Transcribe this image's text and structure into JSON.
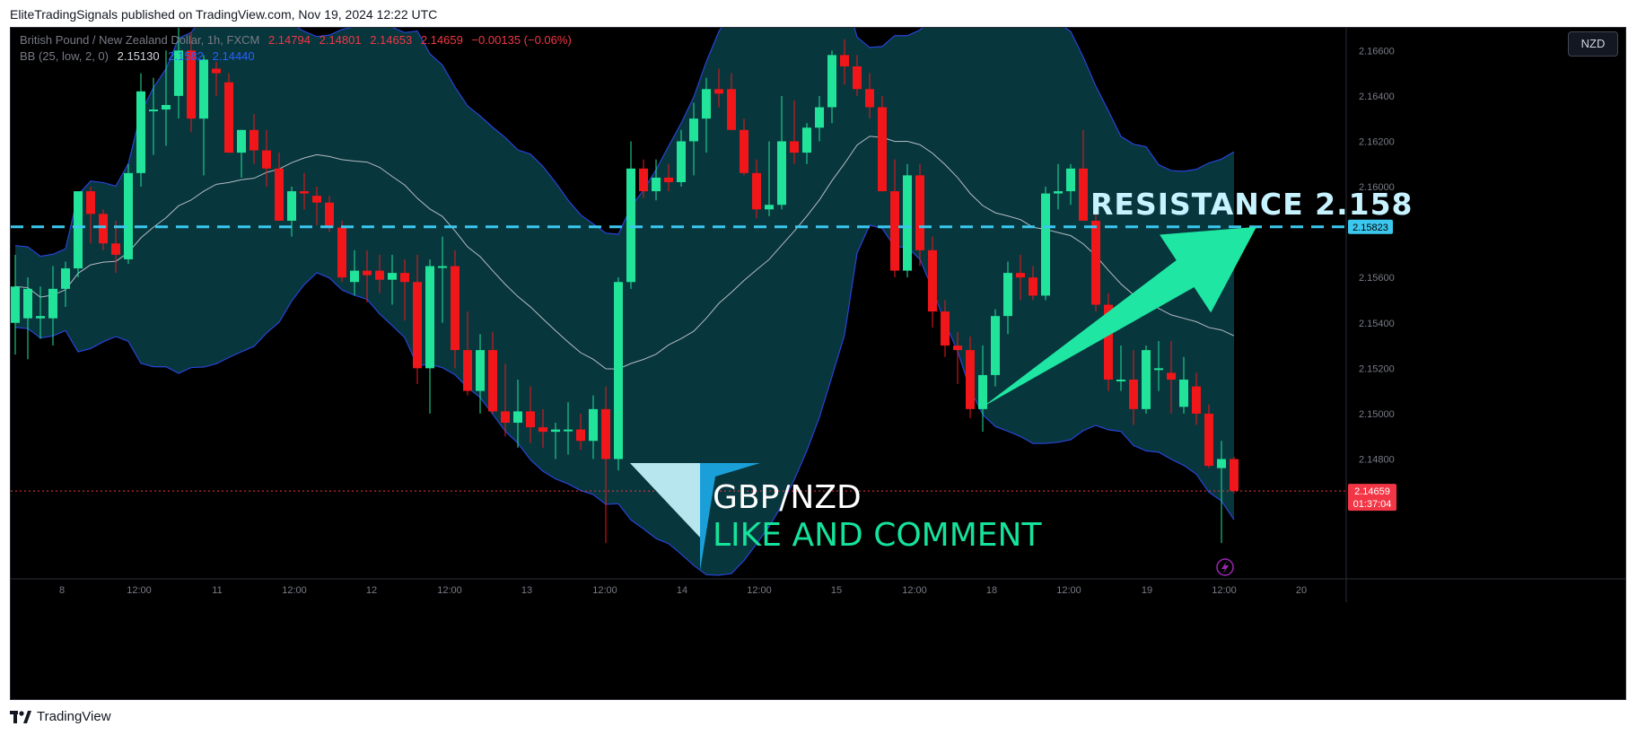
{
  "caption": "EliteTradingSignals published on TradingView.com, Nov 19, 2024 12:22 UTC",
  "legend": {
    "symbol": "British Pound / New Zealand Dollar, 1h, FXCM",
    "open": "2.14794",
    "high": "2.14801",
    "low": "2.14653",
    "close": "2.14659",
    "change": "−0.00135 (−0.06%)",
    "bb_label": "BB (25, low, 2, 0)",
    "bb_mid": "2.15130",
    "bb_upper": "2.1582",
    "bb_lower": "2.14440"
  },
  "currency_button": "NZD",
  "footer": "TradingView",
  "overlay": {
    "resistance_text": "RESISTANCE 2.158",
    "pair_text": "GBP/NZD",
    "cta_text": "LIKE AND COMMENT"
  },
  "price_labels": {
    "resistance": "2.15823",
    "last": "2.14659",
    "countdown": "01:37:04"
  },
  "colors": {
    "background": "#000000",
    "up": "#22e39a",
    "down": "#f0161a",
    "band_fill": "#07363c",
    "band_line": "#2943d8",
    "mid_line": "#b5bcc4",
    "resistance_line": "#3cc7ee",
    "arrow": "#1fe6a3",
    "last_price": "#f23645",
    "cta": "#16e39b",
    "axis_text": "#787b86"
  },
  "chart_data": {
    "type": "candlestick",
    "title": "British Pound / New Zealand Dollar, 1h, FXCM",
    "ylim": [
      2.1428,
      2.167
    ],
    "y_ticks": [
      "2.16600",
      "2.16400",
      "2.16200",
      "2.16000",
      "2.15600",
      "2.15400",
      "2.15200",
      "2.15000",
      "2.14800"
    ],
    "x_ticks": [
      "8",
      "12:00",
      "11",
      "12:00",
      "12",
      "12:00",
      "13",
      "12:00",
      "14",
      "12:00",
      "15",
      "12:00",
      "18",
      "12:00",
      "19",
      "12:00",
      "20"
    ],
    "resistance": 2.15823,
    "last_price": 2.14659,
    "candles": [
      {
        "o": 2.154,
        "h": 2.157,
        "l": 2.1526,
        "c": 2.1556
      },
      {
        "o": 2.1542,
        "h": 2.156,
        "l": 2.1524,
        "c": 2.1555
      },
      {
        "o": 2.1542,
        "h": 2.1556,
        "l": 2.1533,
        "c": 2.1543
      },
      {
        "o": 2.1542,
        "h": 2.1565,
        "l": 2.153,
        "c": 2.1555
      },
      {
        "o": 2.1555,
        "h": 2.1567,
        "l": 2.1547,
        "c": 2.1564
      },
      {
        "o": 2.1564,
        "h": 2.1598,
        "l": 2.156,
        "c": 2.1598
      },
      {
        "o": 2.1598,
        "h": 2.16,
        "l": 2.1575,
        "c": 2.1588
      },
      {
        "o": 2.1588,
        "h": 2.159,
        "l": 2.1572,
        "c": 2.1575
      },
      {
        "o": 2.1575,
        "h": 2.1585,
        "l": 2.1562,
        "c": 2.157
      },
      {
        "o": 2.1568,
        "h": 2.161,
        "l": 2.1566,
        "c": 2.1606
      },
      {
        "o": 2.1606,
        "h": 2.165,
        "l": 2.16,
        "c": 2.1642
      },
      {
        "o": 2.1634,
        "h": 2.1648,
        "l": 2.1614,
        "c": 2.1634
      },
      {
        "o": 2.1634,
        "h": 2.166,
        "l": 2.1618,
        "c": 2.1636
      },
      {
        "o": 2.164,
        "h": 2.167,
        "l": 2.163,
        "c": 2.166
      },
      {
        "o": 2.166,
        "h": 2.1668,
        "l": 2.1624,
        "c": 2.163
      },
      {
        "o": 2.163,
        "h": 2.1658,
        "l": 2.1605,
        "c": 2.1656
      },
      {
        "o": 2.1652,
        "h": 2.1655,
        "l": 2.164,
        "c": 2.165
      },
      {
        "o": 2.1646,
        "h": 2.165,
        "l": 2.1615,
        "c": 2.1615
      },
      {
        "o": 2.1615,
        "h": 2.1625,
        "l": 2.1604,
        "c": 2.1625
      },
      {
        "o": 2.1625,
        "h": 2.1632,
        "l": 2.161,
        "c": 2.1616
      },
      {
        "o": 2.1616,
        "h": 2.1625,
        "l": 2.16,
        "c": 2.1608
      },
      {
        "o": 2.1608,
        "h": 2.1615,
        "l": 2.1585,
        "c": 2.1585
      },
      {
        "o": 2.1585,
        "h": 2.16,
        "l": 2.1578,
        "c": 2.1598
      },
      {
        "o": 2.1598,
        "h": 2.1606,
        "l": 2.159,
        "c": 2.1597
      },
      {
        "o": 2.1596,
        "h": 2.16,
        "l": 2.1583,
        "c": 2.1593
      },
      {
        "o": 2.1593,
        "h": 2.1596,
        "l": 2.158,
        "c": 2.1582
      },
      {
        "o": 2.1582,
        "h": 2.1585,
        "l": 2.1558,
        "c": 2.156
      },
      {
        "o": 2.1558,
        "h": 2.1572,
        "l": 2.1552,
        "c": 2.1563
      },
      {
        "o": 2.1563,
        "h": 2.1572,
        "l": 2.1549,
        "c": 2.1561
      },
      {
        "o": 2.1563,
        "h": 2.157,
        "l": 2.1553,
        "c": 2.1559
      },
      {
        "o": 2.1559,
        "h": 2.157,
        "l": 2.1548,
        "c": 2.1562
      },
      {
        "o": 2.1562,
        "h": 2.1568,
        "l": 2.1541,
        "c": 2.1558
      },
      {
        "o": 2.1558,
        "h": 2.157,
        "l": 2.1513,
        "c": 2.152
      },
      {
        "o": 2.152,
        "h": 2.1568,
        "l": 2.15,
        "c": 2.1565
      },
      {
        "o": 2.1565,
        "h": 2.1578,
        "l": 2.154,
        "c": 2.1565
      },
      {
        "o": 2.1565,
        "h": 2.1572,
        "l": 2.152,
        "c": 2.1528
      },
      {
        "o": 2.1528,
        "h": 2.1545,
        "l": 2.1508,
        "c": 2.151
      },
      {
        "o": 2.151,
        "h": 2.1535,
        "l": 2.15,
        "c": 2.1528
      },
      {
        "o": 2.1528,
        "h": 2.1536,
        "l": 2.15,
        "c": 2.1501
      },
      {
        "o": 2.1501,
        "h": 2.1522,
        "l": 2.149,
        "c": 2.1496
      },
      {
        "o": 2.1496,
        "h": 2.1515,
        "l": 2.1485,
        "c": 2.1501
      },
      {
        "o": 2.1501,
        "h": 2.1512,
        "l": 2.1487,
        "c": 2.1494
      },
      {
        "o": 2.1494,
        "h": 2.1502,
        "l": 2.1485,
        "c": 2.1492
      },
      {
        "o": 2.1492,
        "h": 2.1496,
        "l": 2.148,
        "c": 2.1493
      },
      {
        "o": 2.1493,
        "h": 2.1505,
        "l": 2.1482,
        "c": 2.1493
      },
      {
        "o": 2.1493,
        "h": 2.15,
        "l": 2.1484,
        "c": 2.1488
      },
      {
        "o": 2.1488,
        "h": 2.1508,
        "l": 2.148,
        "c": 2.1502
      },
      {
        "o": 2.1502,
        "h": 2.1512,
        "l": 2.1443,
        "c": 2.148
      },
      {
        "o": 2.148,
        "h": 2.156,
        "l": 2.1475,
        "c": 2.1558
      },
      {
        "o": 2.1558,
        "h": 2.162,
        "l": 2.1555,
        "c": 2.1608
      },
      {
        "o": 2.1608,
        "h": 2.1612,
        "l": 2.1595,
        "c": 2.1598
      },
      {
        "o": 2.1598,
        "h": 2.1612,
        "l": 2.1594,
        "c": 2.1604
      },
      {
        "o": 2.1604,
        "h": 2.161,
        "l": 2.1598,
        "c": 2.1602
      },
      {
        "o": 2.1602,
        "h": 2.1625,
        "l": 2.16,
        "c": 2.162
      },
      {
        "o": 2.162,
        "h": 2.1637,
        "l": 2.1605,
        "c": 2.163
      },
      {
        "o": 2.163,
        "h": 2.1648,
        "l": 2.1615,
        "c": 2.1643
      },
      {
        "o": 2.1643,
        "h": 2.1652,
        "l": 2.1635,
        "c": 2.1641
      },
      {
        "o": 2.1643,
        "h": 2.165,
        "l": 2.1625,
        "c": 2.1625
      },
      {
        "o": 2.1625,
        "h": 2.163,
        "l": 2.1605,
        "c": 2.1606
      },
      {
        "o": 2.1606,
        "h": 2.1612,
        "l": 2.1586,
        "c": 2.159
      },
      {
        "o": 2.159,
        "h": 2.162,
        "l": 2.1587,
        "c": 2.1592
      },
      {
        "o": 2.1592,
        "h": 2.164,
        "l": 2.159,
        "c": 2.162
      },
      {
        "o": 2.162,
        "h": 2.1638,
        "l": 2.161,
        "c": 2.1615
      },
      {
        "o": 2.1615,
        "h": 2.1628,
        "l": 2.161,
        "c": 2.1626
      },
      {
        "o": 2.1626,
        "h": 2.164,
        "l": 2.162,
        "c": 2.1635
      },
      {
        "o": 2.1635,
        "h": 2.166,
        "l": 2.1628,
        "c": 2.1658
      },
      {
        "o": 2.1658,
        "h": 2.1665,
        "l": 2.1645,
        "c": 2.1653
      },
      {
        "o": 2.1653,
        "h": 2.1658,
        "l": 2.164,
        "c": 2.1643
      },
      {
        "o": 2.1643,
        "h": 2.165,
        "l": 2.163,
        "c": 2.1635
      },
      {
        "o": 2.1635,
        "h": 2.164,
        "l": 2.1598,
        "c": 2.1598
      },
      {
        "o": 2.1598,
        "h": 2.1612,
        "l": 2.156,
        "c": 2.1563
      },
      {
        "o": 2.1563,
        "h": 2.161,
        "l": 2.156,
        "c": 2.1605
      },
      {
        "o": 2.1605,
        "h": 2.161,
        "l": 2.1565,
        "c": 2.1572
      },
      {
        "o": 2.1572,
        "h": 2.1578,
        "l": 2.1538,
        "c": 2.1545
      },
      {
        "o": 2.1545,
        "h": 2.155,
        "l": 2.1525,
        "c": 2.153
      },
      {
        "o": 2.153,
        "h": 2.1536,
        "l": 2.1513,
        "c": 2.1528
      },
      {
        "o": 2.1528,
        "h": 2.1534,
        "l": 2.1498,
        "c": 2.1502
      },
      {
        "o": 2.1502,
        "h": 2.153,
        "l": 2.1492,
        "c": 2.1517
      },
      {
        "o": 2.1517,
        "h": 2.1546,
        "l": 2.1512,
        "c": 2.1543
      },
      {
        "o": 2.1543,
        "h": 2.1567,
        "l": 2.1535,
        "c": 2.1562
      },
      {
        "o": 2.1562,
        "h": 2.157,
        "l": 2.155,
        "c": 2.156
      },
      {
        "o": 2.156,
        "h": 2.1565,
        "l": 2.155,
        "c": 2.1552
      },
      {
        "o": 2.1552,
        "h": 2.16,
        "l": 2.155,
        "c": 2.1597
      },
      {
        "o": 2.1597,
        "h": 2.161,
        "l": 2.159,
        "c": 2.1598
      },
      {
        "o": 2.1598,
        "h": 2.161,
        "l": 2.1592,
        "c": 2.1608
      },
      {
        "o": 2.1608,
        "h": 2.1625,
        "l": 2.1585,
        "c": 2.1585
      },
      {
        "o": 2.1585,
        "h": 2.159,
        "l": 2.1545,
        "c": 2.1548
      },
      {
        "o": 2.1548,
        "h": 2.1553,
        "l": 2.151,
        "c": 2.1515
      },
      {
        "o": 2.1515,
        "h": 2.153,
        "l": 2.151,
        "c": 2.1515
      },
      {
        "o": 2.1515,
        "h": 2.1528,
        "l": 2.1495,
        "c": 2.1502
      },
      {
        "o": 2.1502,
        "h": 2.153,
        "l": 2.15,
        "c": 2.1528
      },
      {
        "o": 2.152,
        "h": 2.1532,
        "l": 2.151,
        "c": 2.152
      },
      {
        "o": 2.1518,
        "h": 2.1532,
        "l": 2.15,
        "c": 2.1515
      },
      {
        "o": 2.1503,
        "h": 2.1525,
        "l": 2.15,
        "c": 2.1515
      },
      {
        "o": 2.1512,
        "h": 2.1518,
        "l": 2.1495,
        "c": 2.15
      },
      {
        "o": 2.15,
        "h": 2.1504,
        "l": 2.1476,
        "c": 2.1477
      },
      {
        "o": 2.1476,
        "h": 2.1488,
        "l": 2.1443,
        "c": 2.148
      },
      {
        "o": 2.148,
        "h": 2.1481,
        "l": 2.1465,
        "c": 2.1466
      }
    ]
  }
}
